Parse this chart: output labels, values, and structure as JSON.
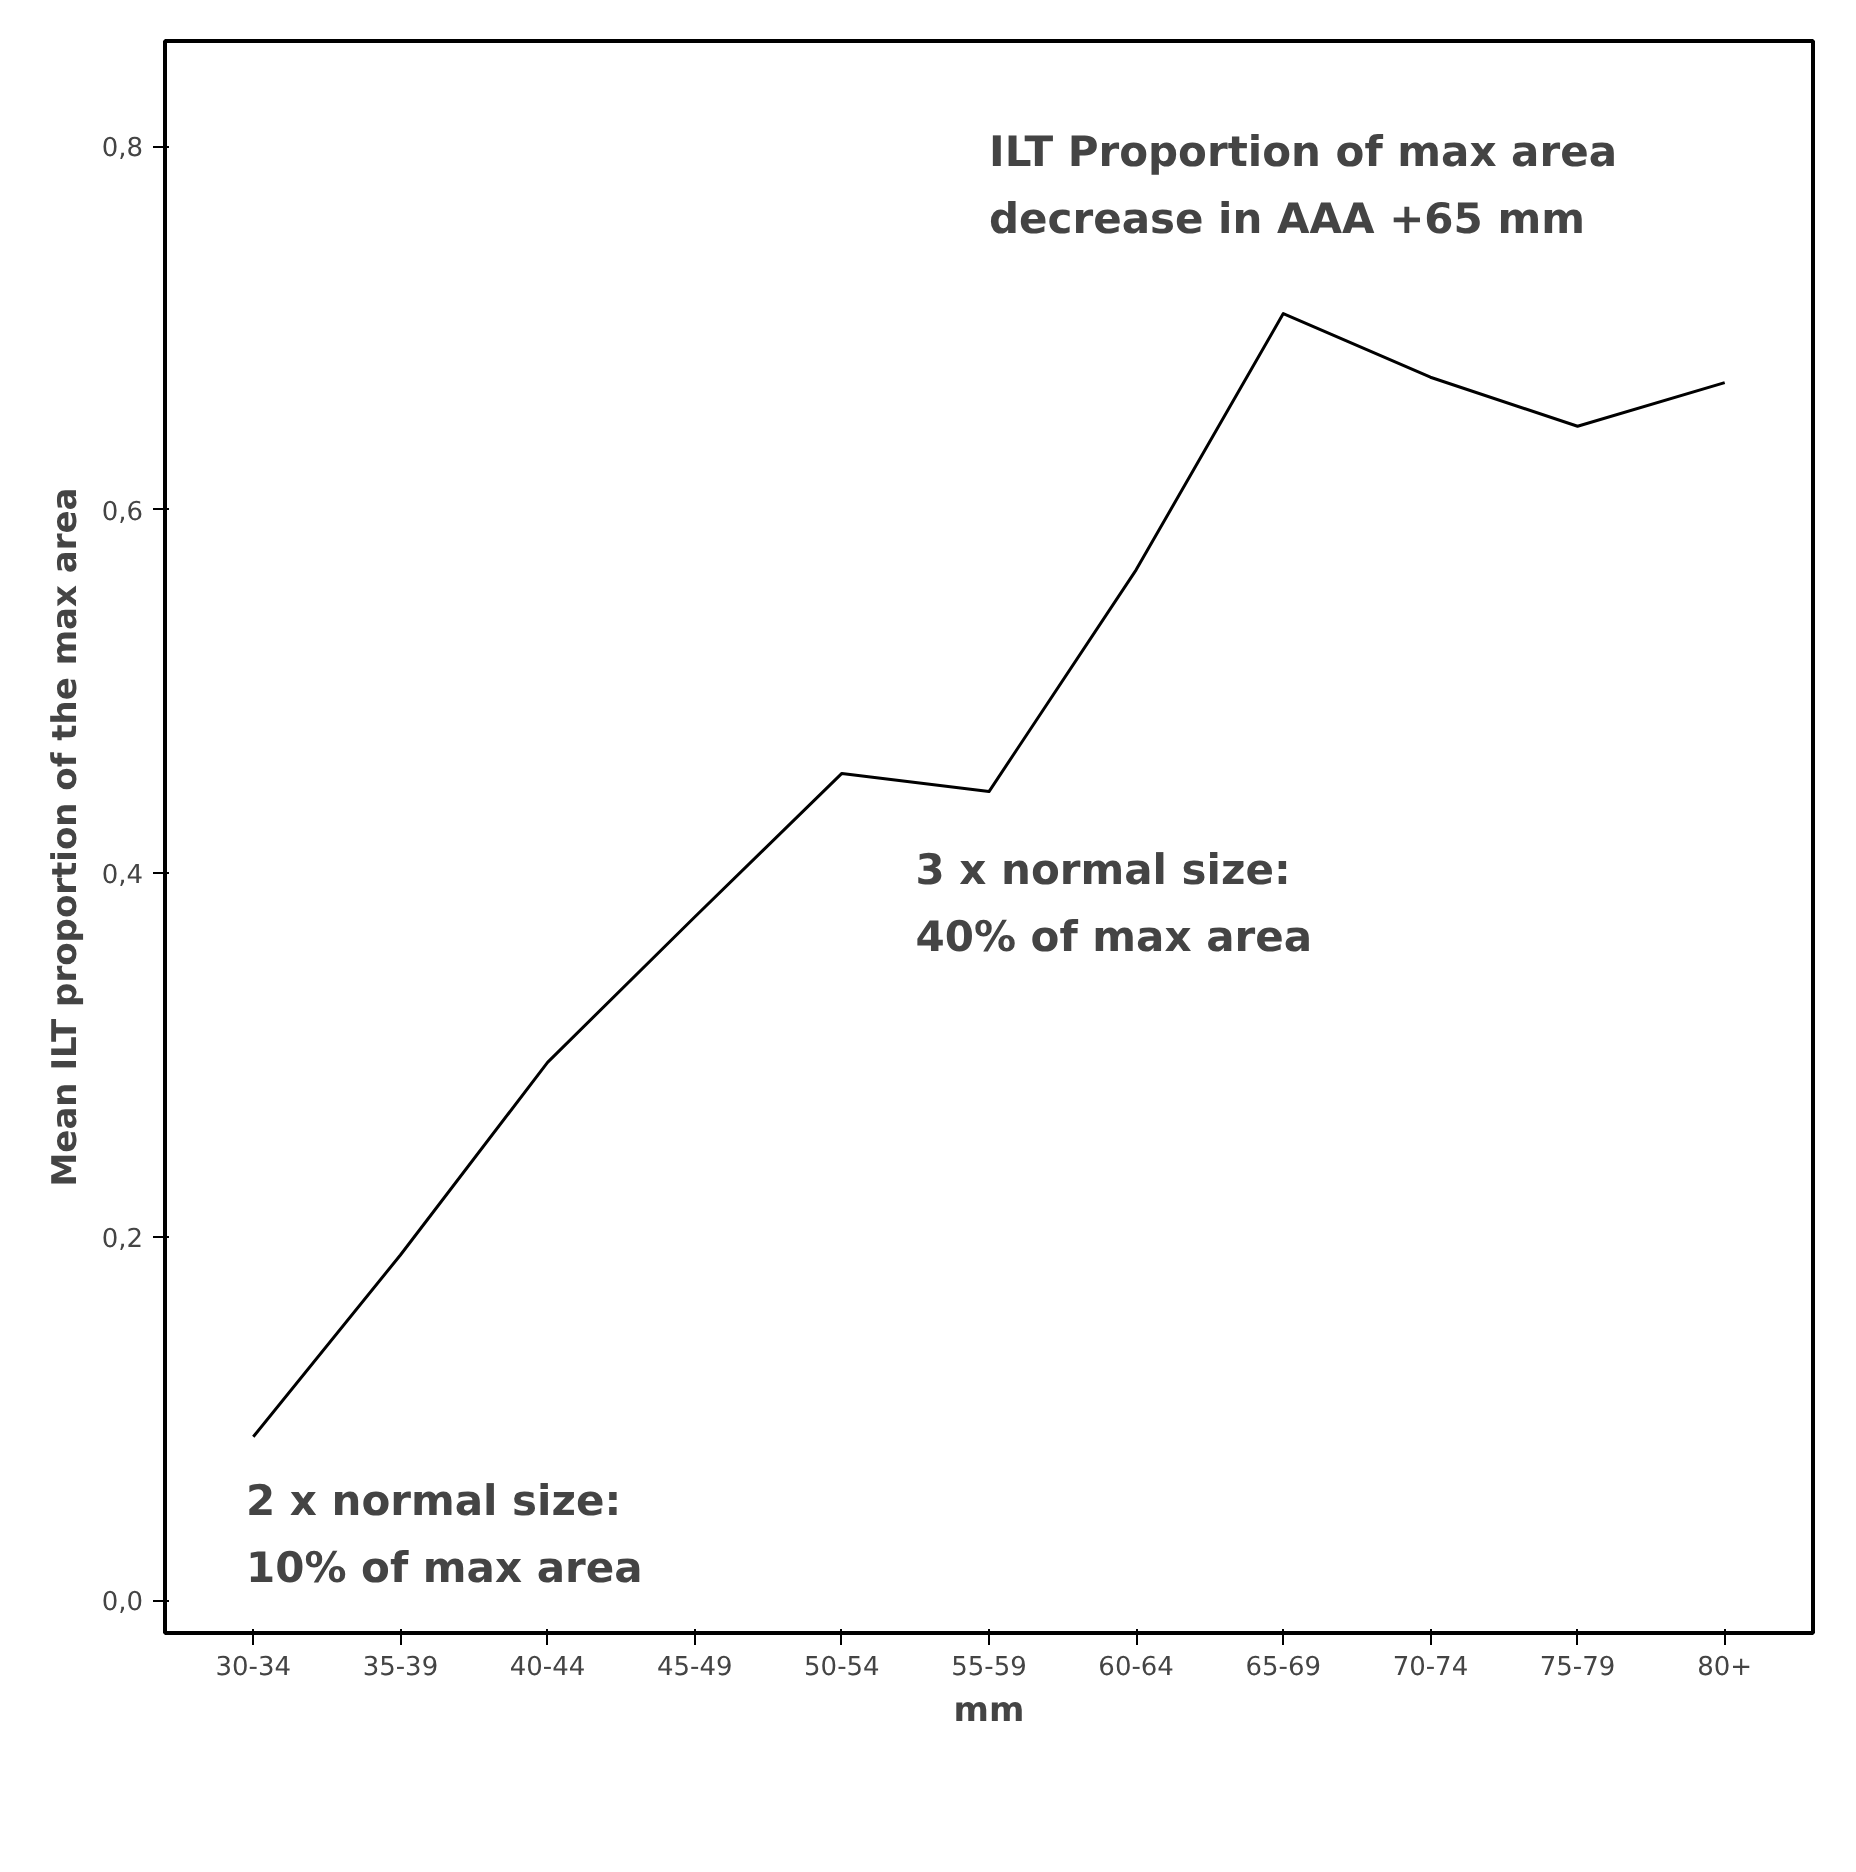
{
  "chart_data": {
    "type": "line",
    "xlabel": "mm",
    "ylabel": "Mean ILT proportion of the max area",
    "categories": [
      "30-34",
      "35-39",
      "40-44",
      "45-49",
      "50-54",
      "55-59",
      "60-64",
      "65-69",
      "70-74",
      "75-79",
      "80+"
    ],
    "series": [
      {
        "color": "#000000",
        "values": [
          0.09,
          0.19,
          0.296,
          0.376,
          0.455,
          0.445,
          0.567,
          0.708,
          0.673,
          0.646,
          0.67
        ]
      }
    ],
    "ylim": [
      -0.018,
      0.858
    ],
    "yticks": [
      {
        "value": 0.0,
        "label": "0,0"
      },
      {
        "value": 0.2,
        "label": "0,2"
      },
      {
        "value": 0.4,
        "label": "0,4"
      },
      {
        "value": 0.6,
        "label": "0,6"
      },
      {
        "value": 0.8,
        "label": "0,8"
      }
    ],
    "annotations": [
      "ILT Proportion of max area\ndecrease in AAA +65 mm",
      "3 x normal size:\n40% of max area",
      "2 x normal size:\n10% of max area"
    ],
    "grid": false,
    "marker": "none",
    "line_style": "solid"
  }
}
